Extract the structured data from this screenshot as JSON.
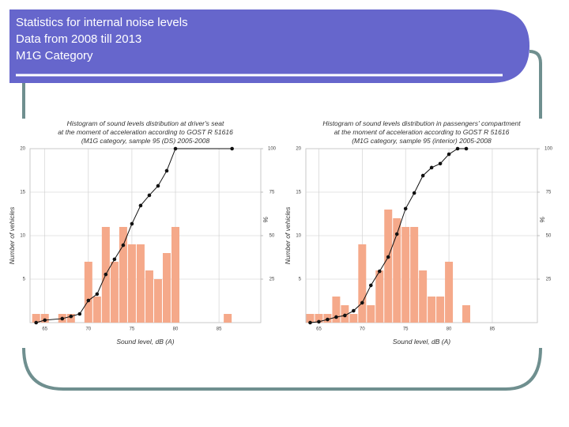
{
  "slide": {
    "title_lines": [
      "Statistics for internal noise levels",
      "Data from 2008 till 2013",
      "M1G Category"
    ]
  },
  "chart_data": [
    {
      "type": "histogram",
      "title_lines": [
        "Histogram of sound levels distribution at driver's seat",
        "at the moment of acceleration according to GOST R 51616",
        "(M1G category, sample 95 (DS) 2005-2008"
      ],
      "xlabel": "Sound level, dB (A)",
      "ylabel": "Number of vehicles",
      "y2label": "%",
      "bins": [
        63.5,
        64.5,
        65.5,
        66.5,
        67.5,
        68.5,
        69.5,
        70.5,
        71.5,
        72.5,
        73.5,
        74.5,
        75.5,
        76.5,
        77.5,
        78.5,
        79.5,
        80.5,
        81.5,
        82.5,
        83.5,
        84.5,
        85.5,
        86.5
      ],
      "values": [
        1,
        1,
        0,
        1,
        1,
        0,
        7,
        3,
        11,
        7,
        11,
        9,
        9,
        6,
        5,
        8,
        11,
        0,
        0,
        0,
        0,
        0,
        1
      ],
      "color": "#f5a98a",
      "cumulative": {
        "x": [
          64,
          65,
          67,
          68,
          69,
          70,
          71,
          72,
          73,
          74,
          75,
          76,
          77,
          78,
          79,
          80,
          86.5
        ],
        "values": [
          0,
          1.4,
          2.3,
          3.6,
          5,
          12.7,
          16.4,
          27.7,
          36.4,
          44.5,
          56.8,
          67.3,
          73.2,
          78.6,
          87.3,
          100,
          100
        ],
        "axis": "y2",
        "color": "#111111"
      },
      "xlim": [
        63.3,
        89.8
      ],
      "xticks": [
        65,
        70,
        75,
        80,
        85
      ],
      "ylim": [
        0,
        20
      ],
      "yticks": [
        5,
        10,
        15,
        20
      ],
      "y2lim": [
        0,
        100
      ],
      "y2ticks": [
        25,
        50,
        75,
        100
      ],
      "grid": true
    },
    {
      "type": "histogram",
      "title_lines": [
        "Histogram of sound levels distribution in passengers' compartment",
        "at the moment of acceleration according to GOST R 51616",
        "(M1G category, sample 95 (interior) 2005-2008"
      ],
      "xlabel": "Sound level, dB (A)",
      "ylabel": "Number of vehicles",
      "y2label": "%",
      "bins": [
        63.5,
        64.5,
        65.5,
        66.5,
        67.5,
        68.5,
        69.5,
        70.5,
        71.5,
        72.5,
        73.5,
        74.5,
        75.5,
        76.5,
        77.5,
        78.5,
        79.5,
        80.5,
        81.5,
        82.5
      ],
      "values": [
        1,
        1,
        1,
        3,
        2,
        1,
        9,
        2,
        6,
        13,
        12,
        11,
        11,
        6,
        3,
        3,
        7,
        0,
        2
      ],
      "color": "#f5a98a",
      "cumulative": {
        "x": [
          64,
          65,
          66,
          67,
          68,
          69,
          70,
          71,
          72,
          73,
          74,
          75,
          76,
          77,
          78,
          79,
          80,
          81,
          82
        ],
        "values": [
          0,
          0.5,
          1.8,
          3.2,
          4.1,
          6.8,
          11.4,
          21.4,
          29.5,
          37.7,
          50.9,
          65.5,
          74.5,
          84.5,
          89.1,
          91.4,
          96.8,
          100,
          100
        ],
        "axis": "y2",
        "color": "#111111"
      },
      "xlim": [
        63.5,
        90.2
      ],
      "xticks": [
        65,
        70,
        75,
        80,
        85
      ],
      "ylim": [
        0,
        20
      ],
      "yticks": [
        5,
        10,
        15,
        20
      ],
      "y2lim": [
        0,
        100
      ],
      "y2ticks": [
        25,
        50,
        75,
        100
      ],
      "grid": true
    }
  ]
}
